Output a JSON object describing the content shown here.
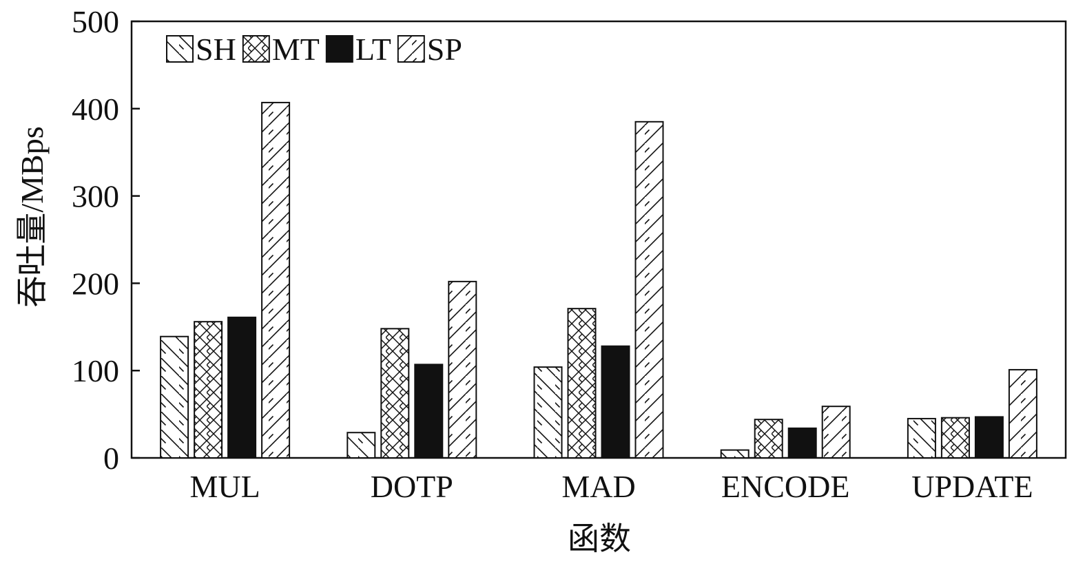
{
  "chart_data": {
    "type": "bar",
    "title": "",
    "xlabel": "函数",
    "ylabel": "吞吐量/MBps",
    "ylim": [
      0,
      500
    ],
    "yticks": [
      0,
      100,
      200,
      300,
      400,
      500
    ],
    "grid": false,
    "legend_position": "top-left",
    "categories": [
      "MUL",
      "DOTP",
      "MAD",
      "ENCODE",
      "UPDATE"
    ],
    "series": [
      {
        "name": "SH",
        "pattern": "diagonal-backslash",
        "color": "#111111",
        "values": [
          139,
          29,
          104,
          9,
          45
        ]
      },
      {
        "name": "MT",
        "pattern": "crosshatch",
        "color": "#111111",
        "values": [
          156,
          148,
          171,
          44,
          46
        ]
      },
      {
        "name": "LT",
        "pattern": "solid",
        "color": "#111111",
        "values": [
          161,
          107,
          128,
          34,
          47
        ]
      },
      {
        "name": "SP",
        "pattern": "diagonal-slash",
        "color": "#111111",
        "values": [
          407,
          202,
          385,
          59,
          101
        ]
      }
    ]
  }
}
